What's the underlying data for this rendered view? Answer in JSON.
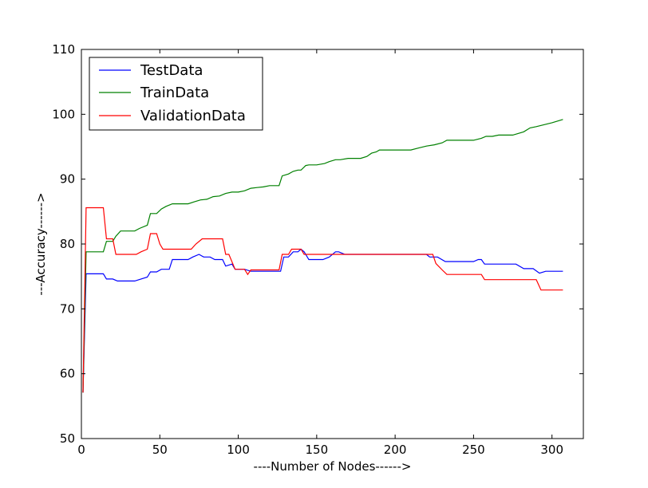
{
  "chart_data": {
    "type": "line",
    "title": "",
    "xlabel": "----Number of Nodes------>",
    "ylabel": "---Accuracy------>",
    "xlim": [
      0,
      320
    ],
    "ylim": [
      50,
      110
    ],
    "xticks": [
      0,
      50,
      100,
      150,
      200,
      250,
      300
    ],
    "yticks": [
      50,
      60,
      70,
      80,
      90,
      100,
      110
    ],
    "grid": false,
    "legend_position": "top-left",
    "series": [
      {
        "name": "TestData",
        "color": "#0000ff",
        "points": [
          [
            1,
            57.1
          ],
          [
            3,
            75.4
          ],
          [
            5,
            75.4
          ],
          [
            10,
            75.4
          ],
          [
            14,
            75.4
          ],
          [
            16,
            74.6
          ],
          [
            20,
            74.6
          ],
          [
            23,
            74.3
          ],
          [
            26,
            74.3
          ],
          [
            30,
            74.3
          ],
          [
            34,
            74.3
          ],
          [
            38,
            74.6
          ],
          [
            42,
            74.9
          ],
          [
            44,
            75.7
          ],
          [
            48,
            75.7
          ],
          [
            51,
            76.1
          ],
          [
            56,
            76.1
          ],
          [
            58,
            77.6
          ],
          [
            62,
            77.6
          ],
          [
            68,
            77.6
          ],
          [
            71,
            78.0
          ],
          [
            75,
            78.4
          ],
          [
            78,
            78.0
          ],
          [
            82,
            78.0
          ],
          [
            85,
            77.6
          ],
          [
            90,
            77.6
          ],
          [
            92,
            76.6
          ],
          [
            96,
            76.9
          ],
          [
            98,
            76.1
          ],
          [
            104,
            76.1
          ],
          [
            108,
            75.8
          ],
          [
            115,
            75.8
          ],
          [
            120,
            75.8
          ],
          [
            127,
            75.8
          ],
          [
            129,
            78.0
          ],
          [
            132,
            78.0
          ],
          [
            135,
            78.8
          ],
          [
            138,
            78.8
          ],
          [
            140,
            79.2
          ],
          [
            142,
            78.8
          ],
          [
            145,
            77.6
          ],
          [
            150,
            77.6
          ],
          [
            154,
            77.6
          ],
          [
            158,
            78.0
          ],
          [
            162,
            78.8
          ],
          [
            164,
            78.8
          ],
          [
            168,
            78.4
          ],
          [
            175,
            78.4
          ],
          [
            185,
            78.4
          ],
          [
            200,
            78.4
          ],
          [
            210,
            78.4
          ],
          [
            220,
            78.4
          ],
          [
            222,
            78.0
          ],
          [
            227,
            78.0
          ],
          [
            232,
            77.3
          ],
          [
            240,
            77.3
          ],
          [
            250,
            77.3
          ],
          [
            253,
            77.6
          ],
          [
            255,
            77.6
          ],
          [
            257,
            76.9
          ],
          [
            265,
            76.9
          ],
          [
            277,
            76.9
          ],
          [
            282,
            76.2
          ],
          [
            288,
            76.2
          ],
          [
            292,
            75.5
          ],
          [
            296,
            75.8
          ],
          [
            303,
            75.8
          ],
          [
            307,
            75.8
          ]
        ]
      },
      {
        "name": "TrainData",
        "color": "#008000",
        "points": [
          [
            1,
            57.1
          ],
          [
            3,
            78.8
          ],
          [
            7,
            78.8
          ],
          [
            12,
            78.8
          ],
          [
            14,
            78.8
          ],
          [
            16,
            80.4
          ],
          [
            20,
            80.4
          ],
          [
            22,
            81.2
          ],
          [
            25,
            82.0
          ],
          [
            30,
            82.0
          ],
          [
            34,
            82.0
          ],
          [
            37,
            82.4
          ],
          [
            42,
            82.9
          ],
          [
            44,
            84.7
          ],
          [
            48,
            84.7
          ],
          [
            51,
            85.4
          ],
          [
            54,
            85.8
          ],
          [
            58,
            86.2
          ],
          [
            62,
            86.2
          ],
          [
            68,
            86.2
          ],
          [
            72,
            86.5
          ],
          [
            76,
            86.8
          ],
          [
            80,
            86.9
          ],
          [
            84,
            87.3
          ],
          [
            88,
            87.4
          ],
          [
            92,
            87.8
          ],
          [
            96,
            88.0
          ],
          [
            100,
            88.0
          ],
          [
            104,
            88.2
          ],
          [
            108,
            88.6
          ],
          [
            112,
            88.7
          ],
          [
            116,
            88.8
          ],
          [
            120,
            89.0
          ],
          [
            126,
            89.0
          ],
          [
            128,
            90.5
          ],
          [
            132,
            90.8
          ],
          [
            135,
            91.2
          ],
          [
            138,
            91.4
          ],
          [
            140,
            91.4
          ],
          [
            143,
            92.1
          ],
          [
            145,
            92.2
          ],
          [
            150,
            92.2
          ],
          [
            155,
            92.4
          ],
          [
            158,
            92.7
          ],
          [
            162,
            93.0
          ],
          [
            165,
            93.0
          ],
          [
            170,
            93.2
          ],
          [
            178,
            93.2
          ],
          [
            182,
            93.5
          ],
          [
            185,
            94.0
          ],
          [
            188,
            94.2
          ],
          [
            190,
            94.5
          ],
          [
            195,
            94.5
          ],
          [
            200,
            94.5
          ],
          [
            210,
            94.5
          ],
          [
            215,
            94.8
          ],
          [
            220,
            95.1
          ],
          [
            225,
            95.3
          ],
          [
            230,
            95.6
          ],
          [
            233,
            96.0
          ],
          [
            240,
            96.0
          ],
          [
            250,
            96.0
          ],
          [
            255,
            96.3
          ],
          [
            258,
            96.6
          ],
          [
            262,
            96.6
          ],
          [
            266,
            96.8
          ],
          [
            270,
            96.8
          ],
          [
            275,
            96.8
          ],
          [
            278,
            97.0
          ],
          [
            282,
            97.3
          ],
          [
            286,
            97.9
          ],
          [
            290,
            98.1
          ],
          [
            300,
            98.7
          ],
          [
            307,
            99.2
          ]
        ]
      },
      {
        "name": "ValidationData",
        "color": "#ff0000",
        "points": [
          [
            1,
            57.1
          ],
          [
            3,
            85.6
          ],
          [
            7,
            85.6
          ],
          [
            12,
            85.6
          ],
          [
            14,
            85.6
          ],
          [
            16,
            80.8
          ],
          [
            20,
            80.8
          ],
          [
            22,
            78.4
          ],
          [
            26,
            78.4
          ],
          [
            30,
            78.4
          ],
          [
            35,
            78.4
          ],
          [
            38,
            78.8
          ],
          [
            42,
            79.2
          ],
          [
            44,
            81.6
          ],
          [
            48,
            81.6
          ],
          [
            50,
            80.0
          ],
          [
            52,
            79.2
          ],
          [
            56,
            79.2
          ],
          [
            62,
            79.2
          ],
          [
            70,
            79.2
          ],
          [
            73,
            80.0
          ],
          [
            77,
            80.8
          ],
          [
            82,
            80.8
          ],
          [
            90,
            80.8
          ],
          [
            92,
            78.4
          ],
          [
            94,
            78.4
          ],
          [
            98,
            76.1
          ],
          [
            104,
            76.1
          ],
          [
            106,
            75.3
          ],
          [
            108,
            76.0
          ],
          [
            115,
            76.0
          ],
          [
            120,
            76.0
          ],
          [
            126,
            76.0
          ],
          [
            128,
            78.4
          ],
          [
            132,
            78.4
          ],
          [
            134,
            79.2
          ],
          [
            140,
            79.2
          ],
          [
            142,
            78.4
          ],
          [
            150,
            78.4
          ],
          [
            160,
            78.4
          ],
          [
            170,
            78.4
          ],
          [
            180,
            78.4
          ],
          [
            190,
            78.4
          ],
          [
            200,
            78.4
          ],
          [
            210,
            78.4
          ],
          [
            220,
            78.4
          ],
          [
            224,
            78.4
          ],
          [
            226,
            77.0
          ],
          [
            230,
            76.0
          ],
          [
            233,
            75.3
          ],
          [
            240,
            75.3
          ],
          [
            250,
            75.3
          ],
          [
            255,
            75.3
          ],
          [
            257,
            74.5
          ],
          [
            265,
            74.5
          ],
          [
            275,
            74.5
          ],
          [
            285,
            74.5
          ],
          [
            290,
            74.5
          ],
          [
            293,
            72.9
          ],
          [
            300,
            72.9
          ],
          [
            307,
            72.9
          ]
        ]
      }
    ]
  }
}
